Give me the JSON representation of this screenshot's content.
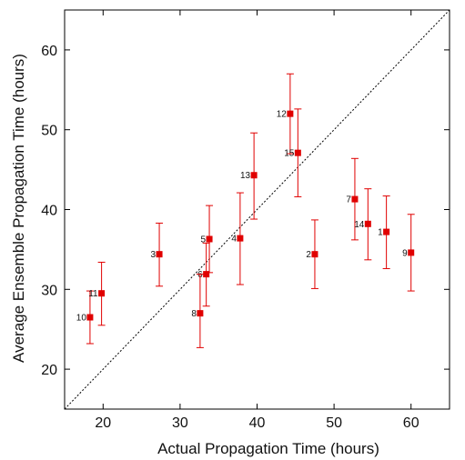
{
  "chart_data": {
    "type": "scatter",
    "title": "",
    "xlabel": "Actual Propagation Time (hours)",
    "ylabel": "Average Ensemble Propagation Time (hours)",
    "xlim": [
      15,
      65
    ],
    "ylim": [
      15,
      65
    ],
    "xticks": [
      20,
      30,
      40,
      50,
      60
    ],
    "yticks": [
      20,
      30,
      40,
      50,
      60
    ],
    "grid": false,
    "legend": "none",
    "marker_color": "#e00000",
    "diagonal": "y = x dotted line",
    "points": [
      {
        "label": "1",
        "x": 56.8,
        "y": 37.2,
        "err_low": 32.6,
        "err_high": 41.7
      },
      {
        "label": "2",
        "x": 47.5,
        "y": 34.4,
        "err_low": 30.1,
        "err_high": 38.7
      },
      {
        "label": "3",
        "x": 27.3,
        "y": 34.4,
        "err_low": 30.4,
        "err_high": 38.3
      },
      {
        "label": "4",
        "x": 37.8,
        "y": 36.4,
        "err_low": 30.6,
        "err_high": 42.1
      },
      {
        "label": "5",
        "x": 33.8,
        "y": 36.3,
        "err_low": 32.1,
        "err_high": 40.5
      },
      {
        "label": "6",
        "x": 33.4,
        "y": 31.9,
        "err_low": 27.9,
        "err_high": 35.8
      },
      {
        "label": "7",
        "x": 52.7,
        "y": 41.3,
        "err_low": 36.2,
        "err_high": 46.4
      },
      {
        "label": "8",
        "x": 32.6,
        "y": 27.0,
        "err_low": 22.7,
        "err_high": 31.9
      },
      {
        "label": "9",
        "x": 60.0,
        "y": 34.6,
        "err_low": 29.8,
        "err_high": 39.4
      },
      {
        "label": "10",
        "x": 18.3,
        "y": 26.5,
        "err_low": 23.2,
        "err_high": 29.8
      },
      {
        "label": "11",
        "x": 19.8,
        "y": 29.5,
        "err_low": 25.5,
        "err_high": 33.4
      },
      {
        "label": "12",
        "x": 44.3,
        "y": 52.0,
        "err_low": 47.0,
        "err_high": 57.0
      },
      {
        "label": "13",
        "x": 39.6,
        "y": 44.3,
        "err_low": 38.8,
        "err_high": 49.6
      },
      {
        "label": "14",
        "x": 54.4,
        "y": 38.2,
        "err_low": 33.7,
        "err_high": 42.6
      },
      {
        "label": "15",
        "x": 45.3,
        "y": 47.1,
        "err_low": 41.6,
        "err_high": 52.6
      }
    ]
  }
}
